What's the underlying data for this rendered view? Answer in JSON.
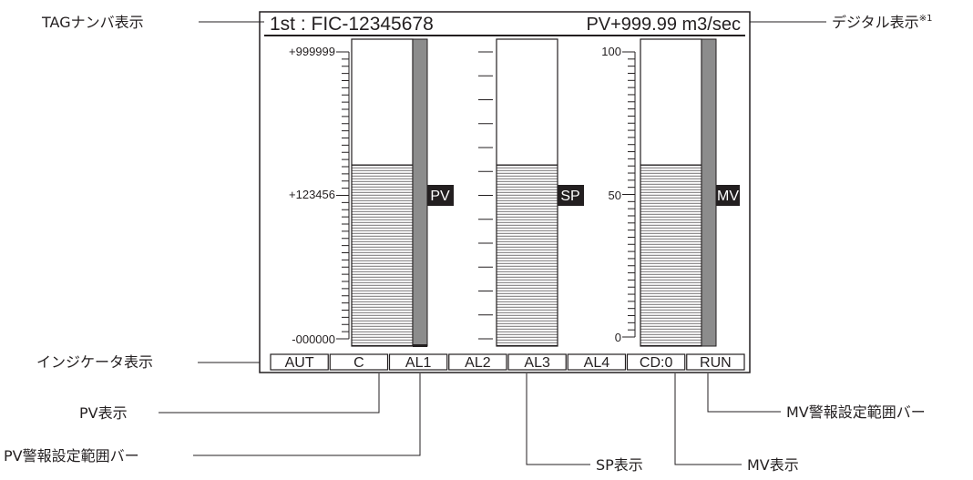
{
  "header": {
    "tag": "1st : FIC-12345678",
    "digital": "PV+999.99 m3/sec"
  },
  "scales": {
    "pv": {
      "top": "+999999",
      "mid": "+123456",
      "bottom": "-000000"
    },
    "mv": {
      "top": "100",
      "mid": "50",
      "bottom": "0"
    }
  },
  "bars": [
    {
      "name": "PV",
      "level": 0.59
    },
    {
      "name": "SP",
      "level": 0.59
    },
    {
      "name": "MV",
      "level": 0.59
    }
  ],
  "indicators": [
    "AUT",
    "C",
    "AL1",
    "AL2",
    "AL3",
    "AL4",
    "CD:0",
    "RUN"
  ],
  "callouts": {
    "tag_number": "TAGナンバ表示",
    "digital": "デジタル表示",
    "digital_note": "※1",
    "indicator": "インジケータ表示",
    "pv": "PV表示",
    "pv_alarm_bar": "PV警報設定範囲バー",
    "sp": "SP表示",
    "mv": "MV表示",
    "mv_alarm_bar": "MV警報設定範囲バー"
  },
  "colors": {
    "line": "#231f20",
    "alarm_bar": "#8c8c8c",
    "tag_bg": "#231f20"
  }
}
